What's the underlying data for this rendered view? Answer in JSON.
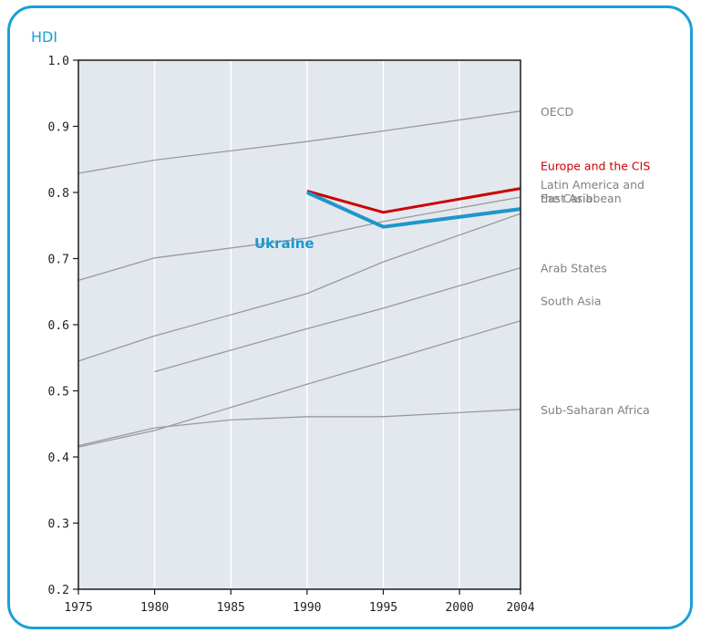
{
  "chart_data": {
    "type": "line",
    "title": "",
    "ylabel": "HDI",
    "xlabel": "",
    "ylim": [
      0.2,
      1.0
    ],
    "xlim": [
      1975,
      2004
    ],
    "x_ticks": [
      1975,
      1980,
      1985,
      1990,
      1995,
      2000,
      2004
    ],
    "y_ticks": [
      0.2,
      0.3,
      0.4,
      0.5,
      0.6,
      0.7,
      0.8,
      0.9,
      1.0
    ],
    "y_tick_labels": [
      "0.2",
      "0.3",
      "0.4",
      "0.5",
      "0.6",
      "0.7",
      "0.8",
      "0.9",
      "1.0"
    ],
    "x_tick_labels": [
      "1975",
      "1980",
      "1985",
      "1990",
      "1995",
      "2000",
      "2004"
    ],
    "grid": true,
    "background": "#e3e8ef",
    "series": [
      {
        "name": "OECD",
        "color": "#9a9a9a",
        "label_color": "#808080",
        "emphasis": "normal",
        "points": [
          [
            1975,
            0.829
          ],
          [
            1980,
            0.849
          ],
          [
            1990,
            0.877
          ],
          [
            1995,
            0.893
          ],
          [
            2004,
            0.923
          ]
        ]
      },
      {
        "name": "Europe and the CIS",
        "color": "#cc0000",
        "label_color": "#cc0000",
        "emphasis": "highlight",
        "points": [
          [
            1990,
            0.802
          ],
          [
            1995,
            0.77
          ],
          [
            2004,
            0.806
          ]
        ]
      },
      {
        "name": "Latin America and the Caribbean",
        "label_lines": [
          "Latin America and",
          "the Caribbean"
        ],
        "color": "#9a9a9a",
        "label_color": "#808080",
        "emphasis": "normal",
        "points": [
          [
            1975,
            0.667
          ],
          [
            1980,
            0.701
          ],
          [
            1990,
            0.731
          ],
          [
            1995,
            0.756
          ],
          [
            2004,
            0.793
          ]
        ]
      },
      {
        "name": "East Asia",
        "color": "#9a9a9a",
        "label_color": "#808080",
        "emphasis": "normal",
        "points": [
          [
            1975,
            0.545
          ],
          [
            1980,
            0.583
          ],
          [
            1990,
            0.647
          ],
          [
            1995,
            0.695
          ],
          [
            2004,
            0.768
          ]
        ]
      },
      {
        "name": "Arab States",
        "color": "#9a9a9a",
        "label_color": "#808080",
        "emphasis": "normal",
        "points": [
          [
            1980,
            0.529
          ],
          [
            1990,
            0.594
          ],
          [
            1995,
            0.625
          ],
          [
            2004,
            0.686
          ]
        ]
      },
      {
        "name": "South Asia",
        "color": "#9a9a9a",
        "label_color": "#808080",
        "emphasis": "normal",
        "points": [
          [
            1975,
            0.415
          ],
          [
            1980,
            0.44
          ],
          [
            1990,
            0.51
          ],
          [
            1995,
            0.544
          ],
          [
            2004,
            0.606
          ]
        ]
      },
      {
        "name": "Sub-Saharan Africa",
        "color": "#9a9a9a",
        "label_color": "#808080",
        "emphasis": "normal",
        "points": [
          [
            1975,
            0.417
          ],
          [
            1980,
            0.444
          ],
          [
            1985,
            0.456
          ],
          [
            1990,
            0.461
          ],
          [
            1995,
            0.461
          ],
          [
            2004,
            0.472
          ]
        ]
      },
      {
        "name": "Ukraine",
        "color": "#1e96cc",
        "label_color": "#1e96cc",
        "emphasis": "focus",
        "points": [
          [
            1990,
            0.8
          ],
          [
            1995,
            0.748
          ],
          [
            2004,
            0.775
          ]
        ]
      }
    ]
  }
}
